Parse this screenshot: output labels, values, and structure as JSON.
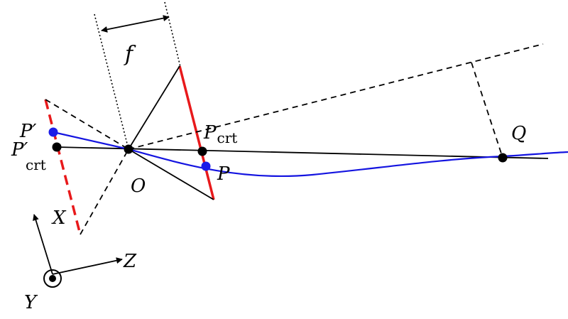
{
  "diagram": {
    "labels": {
      "f": "f",
      "O": "O",
      "Q": "Q",
      "P": "P",
      "X": "X",
      "Y": "Y",
      "Z": "Z",
      "P_prime": "P′",
      "P_crt": "P",
      "P_crt_sub": "crt",
      "P_crt_prime": "P′",
      "P_crt_prime_sub": "crt"
    },
    "colors": {
      "ink": "#000000",
      "image_plane": "#e8191b",
      "curve": "#1414e0",
      "point_blue": "#1c1ce8",
      "point_black": "#000000"
    }
  }
}
